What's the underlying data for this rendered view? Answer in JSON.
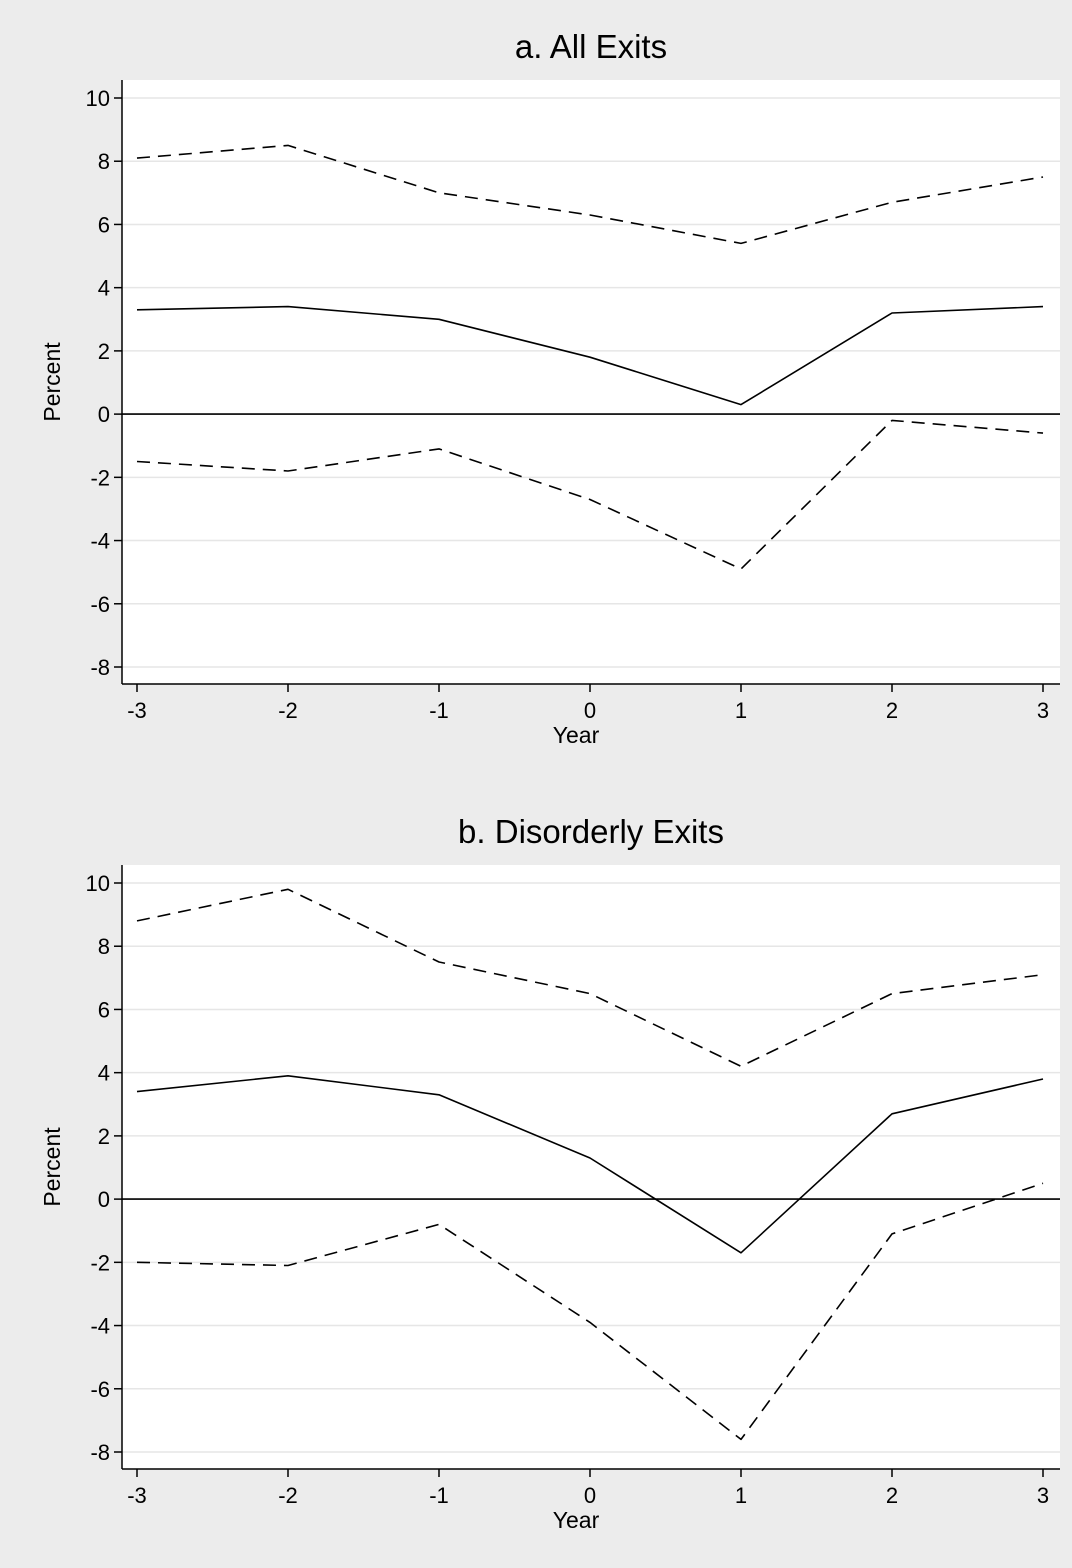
{
  "colors": {
    "background": "#ececec",
    "plot_area": "#ffffff",
    "gridline": "#e6e6e6",
    "line": "#000000"
  },
  "chart_data": [
    {
      "type": "line",
      "title": "a. All Exits",
      "xlabel": "Year",
      "ylabel": "Percent",
      "x": [
        -3,
        -2,
        -1,
        0,
        1,
        2,
        3
      ],
      "xticks": [
        "-3",
        "-2",
        "-1",
        "0",
        "1",
        "2",
        "3"
      ],
      "yticks": [
        "-8",
        "-6",
        "-4",
        "-2",
        "0",
        "2",
        "4",
        "6",
        "8",
        "10"
      ],
      "xlim": [
        -3,
        3
      ],
      "ylim": [
        -8,
        10
      ],
      "grid": true,
      "reference_line_y": 0,
      "series": [
        {
          "style": "dashed",
          "values": [
            8.1,
            8.5,
            7.0,
            6.3,
            5.4,
            6.7,
            7.5
          ]
        },
        {
          "style": "solid",
          "values": [
            3.3,
            3.4,
            3.0,
            1.8,
            0.3,
            3.2,
            3.4
          ]
        },
        {
          "style": "dashed",
          "values": [
            -1.5,
            -1.8,
            -1.1,
            -2.7,
            -4.9,
            -0.2,
            -0.6
          ]
        }
      ]
    },
    {
      "type": "line",
      "title": "b. Disorderly Exits",
      "xlabel": "Year",
      "ylabel": "Percent",
      "x": [
        -3,
        -2,
        -1,
        0,
        1,
        2,
        3
      ],
      "xticks": [
        "-3",
        "-2",
        "-1",
        "0",
        "1",
        "2",
        "3"
      ],
      "yticks": [
        "-8",
        "-6",
        "-4",
        "-2",
        "0",
        "2",
        "4",
        "6",
        "8",
        "10"
      ],
      "xlim": [
        -3,
        3
      ],
      "ylim": [
        -8,
        10
      ],
      "grid": true,
      "reference_line_y": 0,
      "series": [
        {
          "style": "dashed",
          "values": [
            8.8,
            9.8,
            7.5,
            6.5,
            4.2,
            6.5,
            7.1
          ]
        },
        {
          "style": "solid",
          "values": [
            3.4,
            3.9,
            3.3,
            1.3,
            -1.7,
            2.7,
            3.8
          ]
        },
        {
          "style": "dashed",
          "values": [
            -2.0,
            -2.1,
            -0.8,
            -3.9,
            -7.6,
            -1.1,
            0.5
          ]
        }
      ]
    }
  ]
}
